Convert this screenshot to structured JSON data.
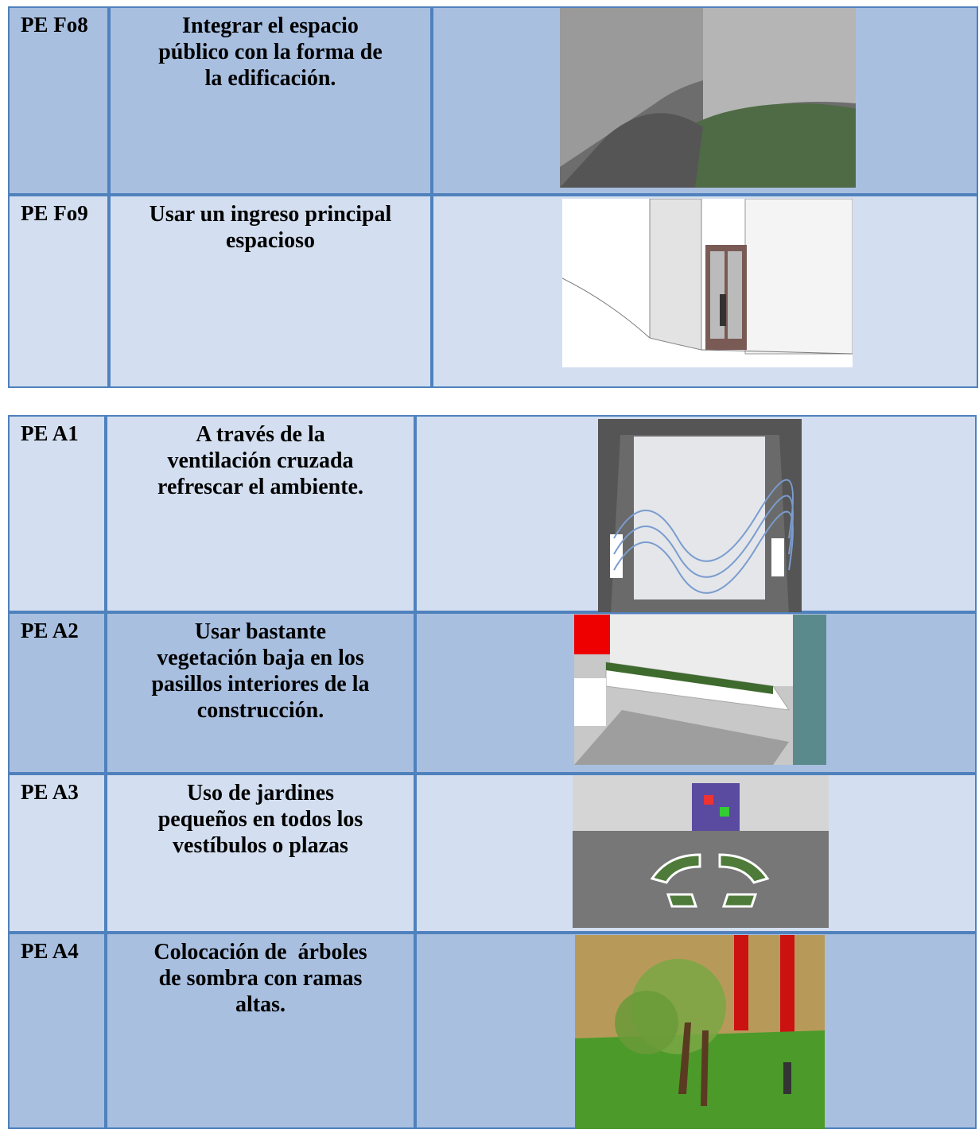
{
  "tables": [
    {
      "rows": [
        {
          "code": "PE Fo8",
          "lines": [
            "Integrar el espacio",
            "público con la forma de",
            "la edificación."
          ]
        },
        {
          "code": "PE Fo9",
          "lines": [
            "Usar un ingreso principal",
            "espacioso"
          ]
        }
      ]
    },
    {
      "rows": [
        {
          "code": "PE A1",
          "lines": [
            "A través de la",
            "ventilación cruzada",
            "refrescar el ambiente."
          ]
        },
        {
          "code": "PE A2",
          "lines": [
            "Usar bastante",
            "vegetación baja en los",
            "pasillos interiores de la",
            "construcción."
          ]
        },
        {
          "code": "PE A3",
          "lines": [
            "Uso de jardines",
            "pequeños en todos los",
            "vestíbulos o plazas"
          ]
        },
        {
          "code": "PE A4",
          "lines": [
            "Colocación de  árboles",
            "de sombra con ramas",
            "altas."
          ]
        }
      ]
    }
  ]
}
